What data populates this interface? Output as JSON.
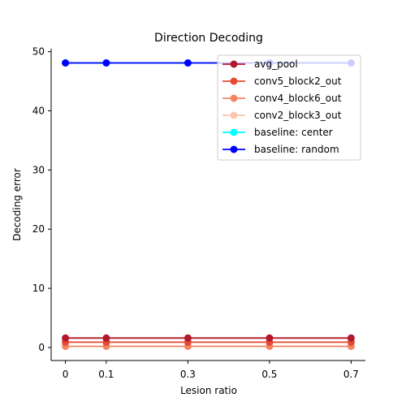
{
  "chart_data": {
    "type": "line",
    "title": "Direction Decoding",
    "xlabel": "Lesion ratio",
    "ylabel": "Decoding error",
    "x": [
      0,
      0.1,
      0.3,
      0.5,
      0.7
    ],
    "xticks": [
      0,
      0.1,
      0.3,
      0.5,
      0.7
    ],
    "xtick_labels": [
      "0",
      "0.1",
      "0.3",
      "0.5",
      "0.7"
    ],
    "xlim": [
      -0.035,
      0.735
    ],
    "yticks": [
      0,
      10,
      20,
      30,
      40,
      50
    ],
    "ylim": [
      -2.2,
      50.5
    ],
    "grid": false,
    "legend_position": "top-right",
    "series": [
      {
        "name": "avg_pool",
        "values": [
          1.6,
          1.6,
          1.6,
          1.6,
          1.6
        ],
        "color": "#b2182b"
      },
      {
        "name": "conv5_block2_out",
        "values": [
          0.9,
          0.9,
          0.9,
          0.9,
          0.9
        ],
        "color": "#e34a33"
      },
      {
        "name": "conv4_block6_out",
        "values": [
          0.2,
          0.2,
          0.2,
          0.2,
          0.2
        ],
        "color": "#f4845f"
      },
      {
        "name": "conv2_block3_out",
        "values": [
          0.9,
          0.9,
          0.9,
          0.9,
          0.9
        ],
        "color": "#fcc5b0"
      },
      {
        "name": "baseline: center",
        "values": [
          48.1,
          48.1,
          48.1,
          48.1,
          48.1
        ],
        "color": "#00ffff"
      },
      {
        "name": "baseline: random",
        "values": [
          48.1,
          48.1,
          48.1,
          48.1,
          48.1
        ],
        "color": "#0000ff"
      }
    ],
    "legend_order": [
      0,
      1,
      2,
      3,
      4,
      5
    ],
    "draw_order": [
      4,
      5,
      3,
      2,
      1,
      0
    ]
  }
}
